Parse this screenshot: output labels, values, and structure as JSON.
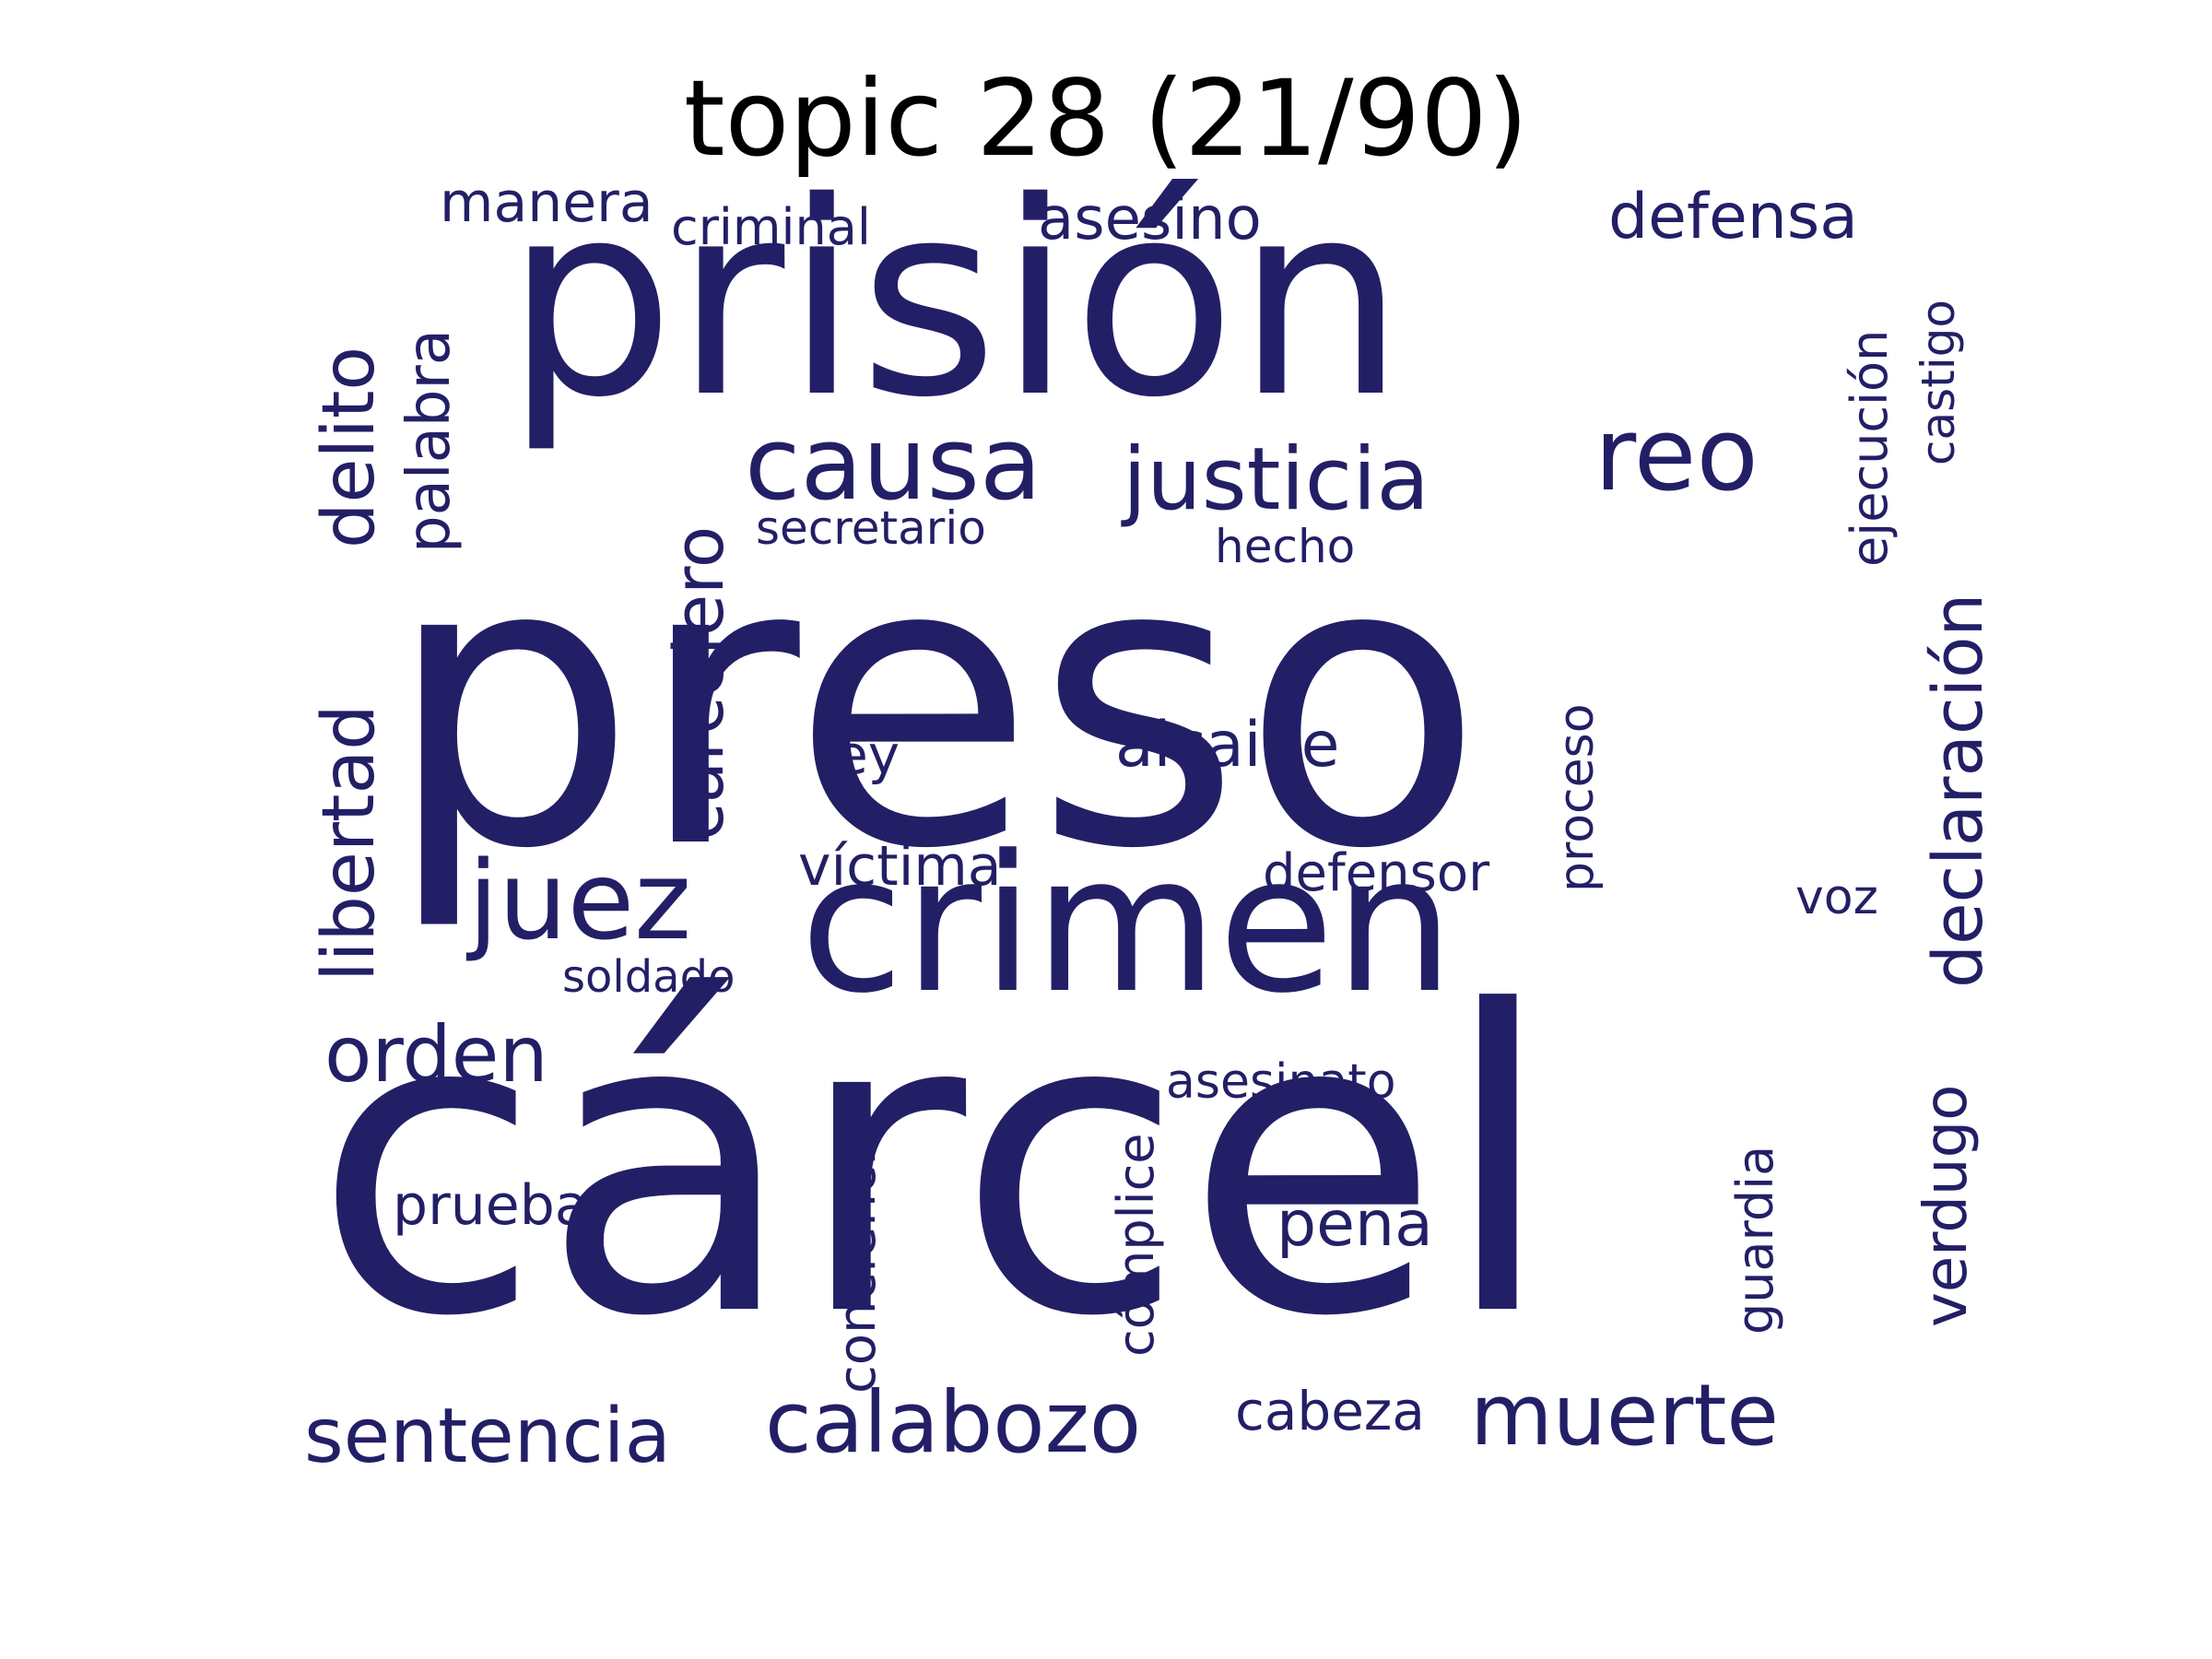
{
  "title": "topic 28 (21/90)",
  "word_color": "#231F66",
  "words": [
    {
      "text": "preso",
      "slug": "preso"
    },
    {
      "text": "cárcel",
      "slug": "carcel"
    },
    {
      "text": "prisión",
      "slug": "prision"
    },
    {
      "text": "crimen",
      "slug": "crimen"
    },
    {
      "text": "causa",
      "slug": "causa"
    },
    {
      "text": "reo",
      "slug": "reo"
    },
    {
      "text": "justicia",
      "slug": "justicia"
    },
    {
      "text": "juez",
      "slug": "juez"
    },
    {
      "text": "delito",
      "slug": "delito"
    },
    {
      "text": "libertad",
      "slug": "libertad"
    },
    {
      "text": "declaración",
      "slug": "declaracion"
    },
    {
      "text": "carcelero",
      "slug": "carcelero"
    },
    {
      "text": "palabra",
      "slug": "palabra"
    },
    {
      "text": "calabozo",
      "slug": "calabozo"
    },
    {
      "text": "muerte",
      "slug": "muerte"
    },
    {
      "text": "sentencia",
      "slug": "sentencia"
    },
    {
      "text": "orden",
      "slug": "orden"
    },
    {
      "text": "defensa",
      "slug": "defensa"
    },
    {
      "text": "asesino",
      "slug": "asesino"
    },
    {
      "text": "alcaide",
      "slug": "alcaide"
    },
    {
      "text": "víctima",
      "slug": "victima"
    },
    {
      "text": "pena",
      "slug": "pena"
    },
    {
      "text": "verdugo",
      "slug": "verdugo"
    },
    {
      "text": "manera",
      "slug": "manera"
    },
    {
      "text": "ejecución",
      "slug": "ejecucion"
    },
    {
      "text": "castigo",
      "slug": "castigo"
    },
    {
      "text": "criminal",
      "slug": "criminal"
    },
    {
      "text": "secretario",
      "slug": "secretario"
    },
    {
      "text": "hecho",
      "slug": "hecho"
    },
    {
      "text": "ley",
      "slug": "ley"
    },
    {
      "text": "defensor",
      "slug": "defensor"
    },
    {
      "text": "proceso",
      "slug": "proceso"
    },
    {
      "text": "voz",
      "slug": "voz"
    },
    {
      "text": "soldado",
      "slug": "soldado"
    },
    {
      "text": "asesinato",
      "slug": "asesinato"
    },
    {
      "text": "prueba",
      "slug": "prueba"
    },
    {
      "text": "conciencia",
      "slug": "conciencia"
    },
    {
      "text": "cómplice",
      "slug": "complice"
    },
    {
      "text": "guardia",
      "slug": "guardia"
    },
    {
      "text": "cabeza",
      "slug": "cabeza"
    }
  ]
}
